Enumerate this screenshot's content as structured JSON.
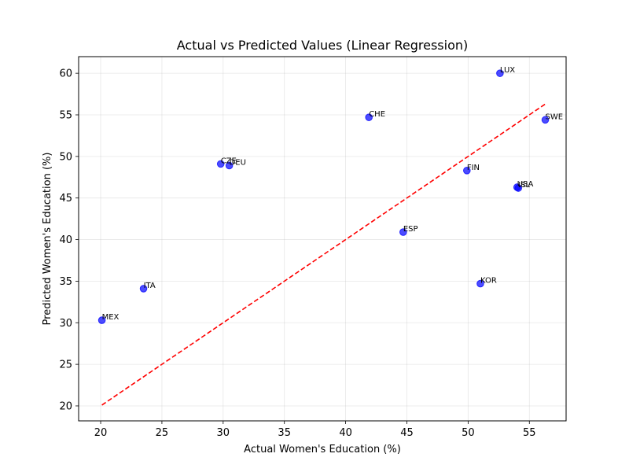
{
  "chart_data": {
    "type": "scatter",
    "title": "Actual vs Predicted Values (Linear Regression)",
    "xlabel": "Actual Women's Education (%)",
    "ylabel": "Predicted Women's Education (%)",
    "xlim": [
      18.2,
      58.0
    ],
    "ylim": [
      18.2,
      62.0
    ],
    "xticks": [
      20,
      25,
      30,
      35,
      40,
      45,
      50,
      55
    ],
    "yticks": [
      20,
      25,
      30,
      35,
      40,
      45,
      50,
      55,
      60
    ],
    "grid": true,
    "point_color": "#0000ff",
    "line_color": "#ff0000",
    "reference_line": {
      "style": "dashed",
      "from": [
        20.1,
        20.1
      ],
      "to": [
        56.3,
        56.3
      ]
    },
    "points": [
      {
        "label": "MEX",
        "x": 20.1,
        "y": 30.3
      },
      {
        "label": "ITA",
        "x": 23.5,
        "y": 34.1
      },
      {
        "label": "CZE",
        "x": 29.8,
        "y": 49.1
      },
      {
        "label": "DEU",
        "x": 30.5,
        "y": 48.9
      },
      {
        "label": "CHE",
        "x": 41.9,
        "y": 54.7
      },
      {
        "label": "ESP",
        "x": 44.7,
        "y": 40.9
      },
      {
        "label": "FIN",
        "x": 49.9,
        "y": 48.3
      },
      {
        "label": "KOR",
        "x": 51.0,
        "y": 34.7
      },
      {
        "label": "LUX",
        "x": 52.6,
        "y": 60.0
      },
      {
        "label": "USA",
        "x": 54.0,
        "y": 46.3
      },
      {
        "label": "ISL",
        "x": 54.1,
        "y": 46.2
      },
      {
        "label": "SWE",
        "x": 56.3,
        "y": 54.4
      }
    ]
  }
}
